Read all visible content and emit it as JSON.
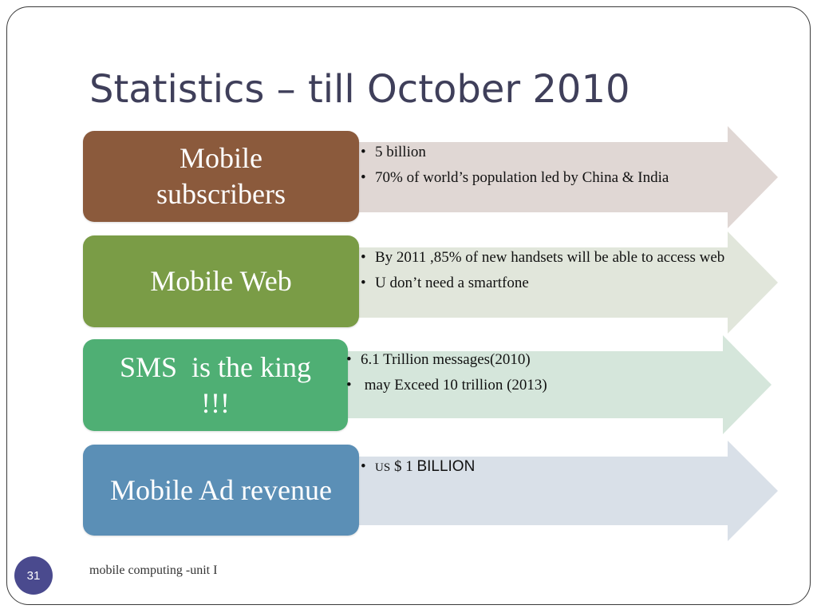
{
  "slide": {
    "title": "Statistics – till October 2010",
    "footer": "mobile computing -unit I",
    "page_number": "31"
  },
  "rows": [
    {
      "label": "Mobile subscribers",
      "bullets": [
        "5 billion",
        "70% of world’s population led by China & India"
      ],
      "box_color": "#8b5a3c",
      "arrow_color": "#e0d7d4"
    },
    {
      "label": "Mobile Web",
      "bullets": [
        "By 2011 ,85% of new handsets will be able to access web",
        "U don’t need a smartfone"
      ],
      "box_color": "#7a9c46",
      "arrow_color": "#e1e6db"
    },
    {
      "label_line1": "SMS  is the king",
      "label_line2": "!!!",
      "bullets": [
        "6.1 Trillion messages(2010)",
        " may Exceed 10 trillion (2013)"
      ],
      "box_color": "#4faf74",
      "arrow_color": "#d5e6db"
    },
    {
      "label": "Mobile Ad revenue",
      "bullet_prefix": "US",
      "bullet_mid": " $ 1 ",
      "bullet_suffix": "BILLION",
      "box_color": "#5b8fb6",
      "arrow_color": "#d9e0e8"
    }
  ]
}
